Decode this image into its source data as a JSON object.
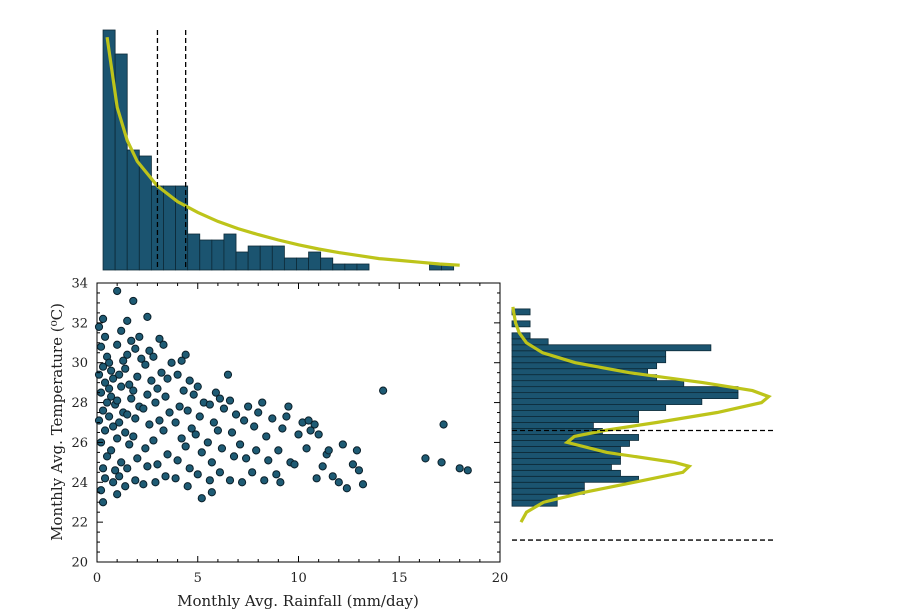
{
  "colors": {
    "bar_fill": "#1b5470",
    "bar_edge": "#0d2a38",
    "point_fill": "#1e5b74",
    "point_edge": "#0a1f2a",
    "fit_curve": "#bdc41a",
    "dashed_line": "#000000",
    "axis": "#000000"
  },
  "chart_data": [
    {
      "type": "scatter",
      "role": "main",
      "xlabel": "Monthly Avg. Rainfall (mm/day)",
      "ylabel": "Monthly Avg. Temperature (⁰C)",
      "xlim": [
        0,
        20
      ],
      "ylim": [
        20,
        34
      ],
      "xticks": [
        "0",
        "5",
        "10",
        "15",
        "20"
      ],
      "yticks": [
        "20",
        "22",
        "24",
        "26",
        "28",
        "30",
        "32",
        "34"
      ],
      "points": [
        [
          0.3,
          23.0
        ],
        [
          0.2,
          23.6
        ],
        [
          0.4,
          24.2
        ],
        [
          0.3,
          24.7
        ],
        [
          0.5,
          25.3
        ],
        [
          0.2,
          26.0
        ],
        [
          0.4,
          26.6
        ],
        [
          0.1,
          27.1
        ],
        [
          0.3,
          27.6
        ],
        [
          0.5,
          28.0
        ],
        [
          0.2,
          28.5
        ],
        [
          0.4,
          29.0
        ],
        [
          0.1,
          29.4
        ],
        [
          0.3,
          29.8
        ],
        [
          0.5,
          30.3
        ],
        [
          0.2,
          30.8
        ],
        [
          0.4,
          31.3
        ],
        [
          0.1,
          31.8
        ],
        [
          0.3,
          32.2
        ],
        [
          0.6,
          27.3
        ],
        [
          0.6,
          28.7
        ],
        [
          0.7,
          29.6
        ],
        [
          0.8,
          24.0
        ],
        [
          0.9,
          24.6
        ],
        [
          0.7,
          25.6
        ],
        [
          0.8,
          26.8
        ],
        [
          0.9,
          27.9
        ],
        [
          0.7,
          28.3
        ],
        [
          0.8,
          29.2
        ],
        [
          0.6,
          30.0
        ],
        [
          1.0,
          23.4
        ],
        [
          1.1,
          24.3
        ],
        [
          1.2,
          25.0
        ],
        [
          1.0,
          26.2
        ],
        [
          1.1,
          27.0
        ],
        [
          1.3,
          27.5
        ],
        [
          1.0,
          28.1
        ],
        [
          1.2,
          28.8
        ],
        [
          1.1,
          29.4
        ],
        [
          1.3,
          30.1
        ],
        [
          1.0,
          30.9
        ],
        [
          1.2,
          31.6
        ],
        [
          1.0,
          33.6
        ],
        [
          1.4,
          23.8
        ],
        [
          1.5,
          24.7
        ],
        [
          1.6,
          25.9
        ],
        [
          1.4,
          26.5
        ],
        [
          1.5,
          27.4
        ],
        [
          1.7,
          28.2
        ],
        [
          1.6,
          28.9
        ],
        [
          1.4,
          29.7
        ],
        [
          1.5,
          30.4
        ],
        [
          1.7,
          31.1
        ],
        [
          1.5,
          32.1
        ],
        [
          1.9,
          24.1
        ],
        [
          2.0,
          25.2
        ],
        [
          1.8,
          26.3
        ],
        [
          1.9,
          27.2
        ],
        [
          2.1,
          27.8
        ],
        [
          1.8,
          28.6
        ],
        [
          2.0,
          29.3
        ],
        [
          2.2,
          30.2
        ],
        [
          1.9,
          30.7
        ],
        [
          2.1,
          31.3
        ],
        [
          1.8,
          33.1
        ],
        [
          2.3,
          23.9
        ],
        [
          2.5,
          24.8
        ],
        [
          2.4,
          25.7
        ],
        [
          2.6,
          26.9
        ],
        [
          2.3,
          27.7
        ],
        [
          2.5,
          28.4
        ],
        [
          2.7,
          29.1
        ],
        [
          2.4,
          29.9
        ],
        [
          2.6,
          30.6
        ],
        [
          2.5,
          32.3
        ],
        [
          2.9,
          24.0
        ],
        [
          3.0,
          24.9
        ],
        [
          2.8,
          26.1
        ],
        [
          3.1,
          27.1
        ],
        [
          2.9,
          28.0
        ],
        [
          3.0,
          28.7
        ],
        [
          3.2,
          29.5
        ],
        [
          2.8,
          30.3
        ],
        [
          3.1,
          31.2
        ],
        [
          3.4,
          24.3
        ],
        [
          3.5,
          25.4
        ],
        [
          3.3,
          26.6
        ],
        [
          3.6,
          27.5
        ],
        [
          3.4,
          28.3
        ],
        [
          3.5,
          29.2
        ],
        [
          3.7,
          30.0
        ],
        [
          3.3,
          30.9
        ],
        [
          3.9,
          24.2
        ],
        [
          4.0,
          25.1
        ],
        [
          4.2,
          26.2
        ],
        [
          3.9,
          27.0
        ],
        [
          4.1,
          27.8
        ],
        [
          4.3,
          28.6
        ],
        [
          4.0,
          29.4
        ],
        [
          4.2,
          30.1
        ],
        [
          4.5,
          23.8
        ],
        [
          4.6,
          24.7
        ],
        [
          4.4,
          25.8
        ],
        [
          4.7,
          26.7
        ],
        [
          4.5,
          27.6
        ],
        [
          4.8,
          28.4
        ],
        [
          4.6,
          29.1
        ],
        [
          4.4,
          30.4
        ],
        [
          5.0,
          24.4
        ],
        [
          5.2,
          25.5
        ],
        [
          4.9,
          26.4
        ],
        [
          5.1,
          27.3
        ],
        [
          5.3,
          28.0
        ],
        [
          5.0,
          28.8
        ],
        [
          5.2,
          23.2
        ],
        [
          5.6,
          24.1
        ],
        [
          5.7,
          25.0
        ],
        [
          5.5,
          26.0
        ],
        [
          5.8,
          27.0
        ],
        [
          5.6,
          27.9
        ],
        [
          5.9,
          28.5
        ],
        [
          5.7,
          23.5
        ],
        [
          6.1,
          24.5
        ],
        [
          6.2,
          25.7
        ],
        [
          6.0,
          26.6
        ],
        [
          6.3,
          27.7
        ],
        [
          6.1,
          28.2
        ],
        [
          6.5,
          29.4
        ],
        [
          6.6,
          24.1
        ],
        [
          6.8,
          25.3
        ],
        [
          6.7,
          26.5
        ],
        [
          6.9,
          27.4
        ],
        [
          6.6,
          28.1
        ],
        [
          7.2,
          24.0
        ],
        [
          7.4,
          25.2
        ],
        [
          7.1,
          25.9
        ],
        [
          7.3,
          27.1
        ],
        [
          7.5,
          27.8
        ],
        [
          7.7,
          24.5
        ],
        [
          7.9,
          25.6
        ],
        [
          7.8,
          26.8
        ],
        [
          8.0,
          27.5
        ],
        [
          8.2,
          28.0
        ],
        [
          8.3,
          24.1
        ],
        [
          8.5,
          25.1
        ],
        [
          8.4,
          26.3
        ],
        [
          8.7,
          27.2
        ],
        [
          8.9,
          24.4
        ],
        [
          9.0,
          25.6
        ],
        [
          9.2,
          26.7
        ],
        [
          9.4,
          27.3
        ],
        [
          9.6,
          25.0
        ],
        [
          9.8,
          24.9
        ],
        [
          10.0,
          26.4
        ],
        [
          10.2,
          27.0
        ],
        [
          10.4,
          25.7
        ],
        [
          10.6,
          26.6
        ],
        [
          10.8,
          26.9
        ],
        [
          11.0,
          26.4
        ],
        [
          11.2,
          24.8
        ],
        [
          11.4,
          25.4
        ],
        [
          11.7,
          24.3
        ],
        [
          12.0,
          24.0
        ],
        [
          12.4,
          23.7
        ],
        [
          12.7,
          24.9
        ],
        [
          12.9,
          25.6
        ],
        [
          13.2,
          23.9
        ],
        [
          13.0,
          24.6
        ],
        [
          14.2,
          28.6
        ],
        [
          16.3,
          25.2
        ],
        [
          17.1,
          25.0
        ],
        [
          17.2,
          26.9
        ],
        [
          18.0,
          24.7
        ],
        [
          18.4,
          24.6
        ],
        [
          9.5,
          27.8
        ],
        [
          10.5,
          27.1
        ],
        [
          11.5,
          25.6
        ],
        [
          12.2,
          25.9
        ],
        [
          10.9,
          24.2
        ],
        [
          9.1,
          24.0
        ]
      ]
    },
    {
      "type": "histogram",
      "role": "top-marginal",
      "variable": "Monthly Avg. Rainfall (mm/day)",
      "bin_edges": [
        0.3,
        0.9,
        1.5,
        2.1,
        2.7,
        3.3,
        3.9,
        4.5,
        5.1,
        5.7,
        6.3,
        6.9,
        7.5,
        8.1,
        8.7,
        9.3,
        9.9,
        10.5,
        11.1,
        11.7,
        12.3,
        12.9,
        13.5,
        14.1,
        14.7,
        15.3,
        15.9,
        16.5,
        17.1,
        17.7,
        18.3
      ],
      "counts": [
        40,
        36,
        20,
        19,
        14,
        14,
        14,
        6,
        5,
        5,
        6,
        3,
        4,
        4,
        4,
        2,
        2,
        3,
        2,
        1,
        1,
        1,
        0,
        0,
        0,
        0,
        0,
        1,
        1,
        0
      ],
      "fit_curve": [
        [
          0.5,
          38.8
        ],
        [
          1.0,
          27.1
        ],
        [
          1.5,
          21.6
        ],
        [
          2.0,
          18.1
        ],
        [
          3.0,
          14.0
        ],
        [
          4.0,
          11.4
        ],
        [
          5.0,
          9.6
        ],
        [
          6.0,
          8.1
        ],
        [
          7.0,
          6.9
        ],
        [
          8.0,
          5.9
        ],
        [
          9.0,
          5.0
        ],
        [
          10.0,
          4.2
        ],
        [
          11.0,
          3.5
        ],
        [
          12.0,
          2.9
        ],
        [
          13.0,
          2.4
        ],
        [
          14.0,
          1.9
        ],
        [
          15.0,
          1.6
        ],
        [
          16.0,
          1.3
        ],
        [
          17.0,
          1.0
        ],
        [
          18.0,
          0.8
        ]
      ],
      "dashed_lines_x": [
        3.0,
        4.4
      ]
    },
    {
      "type": "histogram",
      "role": "right-marginal",
      "orientation": "horizontal",
      "variable": "Monthly Avg. Temperature (⁰C)",
      "bin_edges": [
        22.8,
        23.1,
        23.4,
        23.7,
        24.0,
        24.3,
        24.6,
        24.9,
        25.2,
        25.5,
        25.8,
        26.1,
        26.4,
        26.7,
        27.0,
        27.3,
        27.6,
        27.9,
        28.2,
        28.5,
        28.8,
        29.1,
        29.4,
        29.7,
        30.0,
        30.3,
        30.6,
        30.9,
        31.2,
        31.5,
        31.8,
        32.1,
        32.4,
        32.7,
        33.0
      ],
      "counts": [
        5,
        5,
        8,
        8,
        14,
        12,
        11,
        12,
        12,
        12,
        13,
        14,
        10,
        9,
        14,
        14,
        17,
        21,
        25,
        25,
        19,
        16,
        15,
        16,
        17,
        17,
        22,
        4,
        2,
        0,
        2,
        0,
        2,
        0
      ],
      "fit_curve": [
        [
          22.0,
          1.0
        ],
        [
          22.5,
          1.6
        ],
        [
          23.0,
          3.5
        ],
        [
          23.5,
          8.0
        ],
        [
          24.0,
          13.5
        ],
        [
          24.5,
          18.9
        ],
        [
          24.8,
          19.6
        ],
        [
          25.0,
          18.0
        ],
        [
          25.5,
          10.5
        ],
        [
          26.0,
          6.1
        ],
        [
          26.3,
          6.9
        ],
        [
          26.6,
          10.2
        ],
        [
          27.0,
          16.0
        ],
        [
          27.5,
          22.7
        ],
        [
          28.0,
          27.6
        ],
        [
          28.3,
          28.4
        ],
        [
          28.6,
          26.6
        ],
        [
          29.0,
          21.1
        ],
        [
          29.5,
          13.0
        ],
        [
          30.0,
          7.0
        ],
        [
          30.5,
          3.4
        ],
        [
          31.0,
          1.6
        ],
        [
          31.5,
          0.8
        ],
        [
          32.0,
          0.4
        ],
        [
          32.5,
          0.2
        ],
        [
          32.8,
          0.1
        ]
      ],
      "dashed_lines_y": [
        26.6,
        21.1
      ]
    }
  ]
}
